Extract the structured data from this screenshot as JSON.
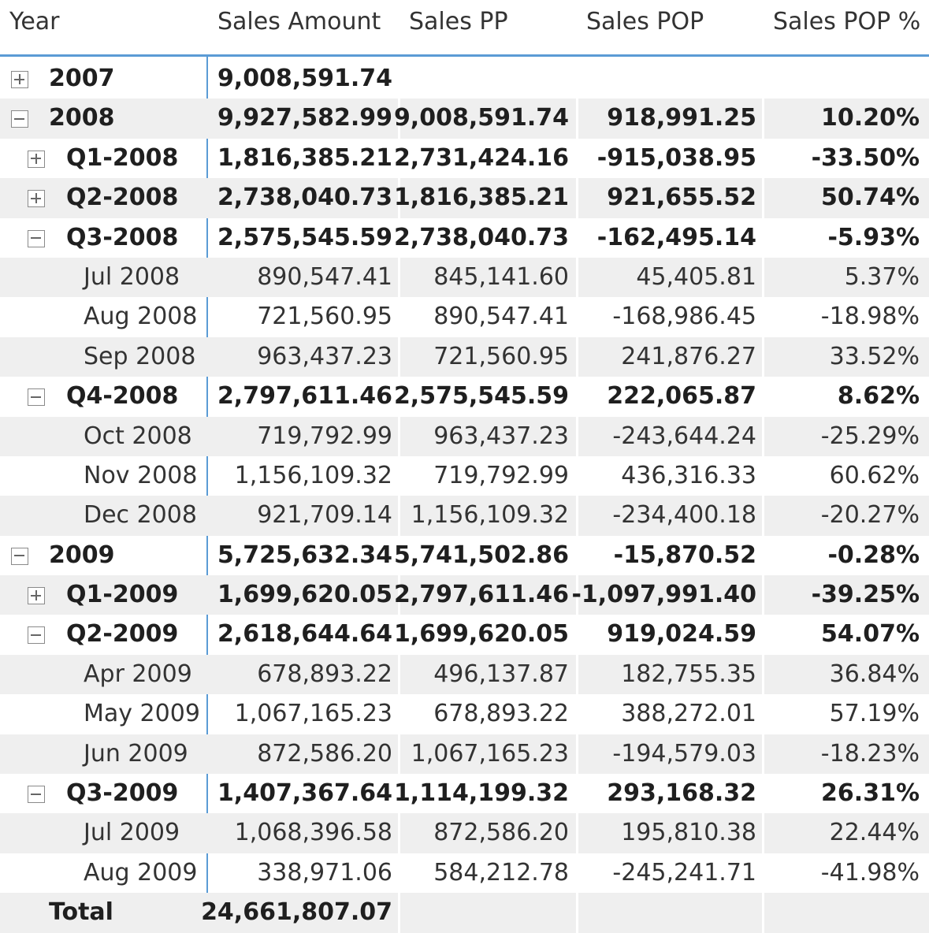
{
  "headers": {
    "year": "Year",
    "sales_amount": "Sales Amount",
    "sales_pp": "Sales PP",
    "sales_pop": "Sales POP",
    "sales_pop_pct": "Sales POP %"
  },
  "rows": [
    {
      "label": "2007",
      "level": 0,
      "toggle": "plus",
      "bold": true,
      "amount": "9,008,591.74",
      "pp": "",
      "pop": "",
      "pct": ""
    },
    {
      "label": "2008",
      "level": 0,
      "toggle": "minus",
      "bold": true,
      "amount": "9,927,582.99",
      "pp": "9,008,591.74",
      "pop": "918,991.25",
      "pct": "10.20%"
    },
    {
      "label": "Q1-2008",
      "level": 1,
      "toggle": "plus",
      "bold": true,
      "amount": "1,816,385.21",
      "pp": "2,731,424.16",
      "pop": "-915,038.95",
      "pct": "-33.50%"
    },
    {
      "label": "Q2-2008",
      "level": 1,
      "toggle": "plus",
      "bold": true,
      "amount": "2,738,040.73",
      "pp": "1,816,385.21",
      "pop": "921,655.52",
      "pct": "50.74%"
    },
    {
      "label": "Q3-2008",
      "level": 1,
      "toggle": "minus",
      "bold": true,
      "amount": "2,575,545.59",
      "pp": "2,738,040.73",
      "pop": "-162,495.14",
      "pct": "-5.93%"
    },
    {
      "label": "Jul 2008",
      "level": 2,
      "toggle": "",
      "bold": false,
      "amount": "890,547.41",
      "pp": "845,141.60",
      "pop": "45,405.81",
      "pct": "5.37%"
    },
    {
      "label": "Aug 2008",
      "level": 2,
      "toggle": "",
      "bold": false,
      "amount": "721,560.95",
      "pp": "890,547.41",
      "pop": "-168,986.45",
      "pct": "-18.98%"
    },
    {
      "label": "Sep 2008",
      "level": 2,
      "toggle": "",
      "bold": false,
      "amount": "963,437.23",
      "pp": "721,560.95",
      "pop": "241,876.27",
      "pct": "33.52%"
    },
    {
      "label": "Q4-2008",
      "level": 1,
      "toggle": "minus",
      "bold": true,
      "amount": "2,797,611.46",
      "pp": "2,575,545.59",
      "pop": "222,065.87",
      "pct": "8.62%"
    },
    {
      "label": "Oct 2008",
      "level": 2,
      "toggle": "",
      "bold": false,
      "amount": "719,792.99",
      "pp": "963,437.23",
      "pop": "-243,644.24",
      "pct": "-25.29%"
    },
    {
      "label": "Nov 2008",
      "level": 2,
      "toggle": "",
      "bold": false,
      "amount": "1,156,109.32",
      "pp": "719,792.99",
      "pop": "436,316.33",
      "pct": "60.62%"
    },
    {
      "label": "Dec 2008",
      "level": 2,
      "toggle": "",
      "bold": false,
      "amount": "921,709.14",
      "pp": "1,156,109.32",
      "pop": "-234,400.18",
      "pct": "-20.27%"
    },
    {
      "label": "2009",
      "level": 0,
      "toggle": "minus",
      "bold": true,
      "amount": "5,725,632.34",
      "pp": "5,741,502.86",
      "pop": "-15,870.52",
      "pct": "-0.28%"
    },
    {
      "label": "Q1-2009",
      "level": 1,
      "toggle": "plus",
      "bold": true,
      "amount": "1,699,620.05",
      "pp": "2,797,611.46",
      "pop": "-1,097,991.40",
      "pct": "-39.25%"
    },
    {
      "label": "Q2-2009",
      "level": 1,
      "toggle": "minus",
      "bold": true,
      "amount": "2,618,644.64",
      "pp": "1,699,620.05",
      "pop": "919,024.59",
      "pct": "54.07%"
    },
    {
      "label": "Apr 2009",
      "level": 2,
      "toggle": "",
      "bold": false,
      "amount": "678,893.22",
      "pp": "496,137.87",
      "pop": "182,755.35",
      "pct": "36.84%"
    },
    {
      "label": "May 2009",
      "level": 2,
      "toggle": "",
      "bold": false,
      "amount": "1,067,165.23",
      "pp": "678,893.22",
      "pop": "388,272.01",
      "pct": "57.19%"
    },
    {
      "label": "Jun 2009",
      "level": 2,
      "toggle": "",
      "bold": false,
      "amount": "872,586.20",
      "pp": "1,067,165.23",
      "pop": "-194,579.03",
      "pct": "-18.23%"
    },
    {
      "label": "Q3-2009",
      "level": 1,
      "toggle": "minus",
      "bold": true,
      "amount": "1,407,367.64",
      "pp": "1,114,199.32",
      "pop": "293,168.32",
      "pct": "26.31%"
    },
    {
      "label": "Jul 2009",
      "level": 2,
      "toggle": "",
      "bold": false,
      "amount": "1,068,396.58",
      "pp": "872,586.20",
      "pop": "195,810.38",
      "pct": "22.44%"
    },
    {
      "label": "Aug 2009",
      "level": 2,
      "toggle": "",
      "bold": false,
      "amount": "338,971.06",
      "pp": "584,212.78",
      "pop": "-245,241.71",
      "pct": "-41.98%"
    },
    {
      "label": "Total",
      "level": 0,
      "toggle": "",
      "bold": true,
      "amount": "24,661,807.07",
      "pp": "",
      "pop": "",
      "pct": ""
    }
  ]
}
